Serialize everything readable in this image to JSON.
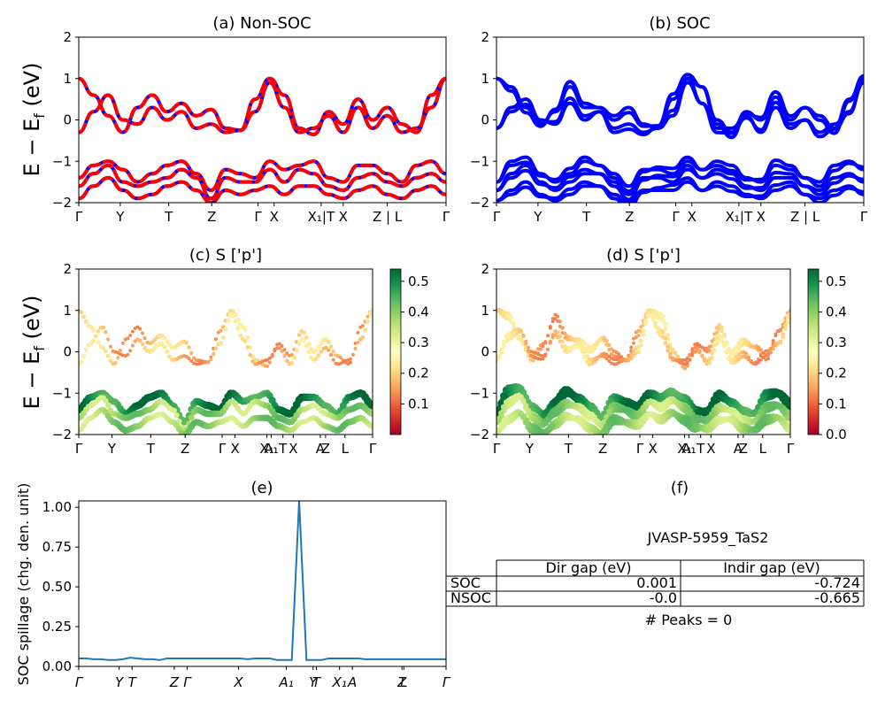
{
  "panels": {
    "a": {
      "title": "(a) Non-SOC"
    },
    "b": {
      "title": "(b) SOC"
    },
    "c": {
      "title": "(c)  S ['p']"
    },
    "d": {
      "title": "(d) S ['p']"
    },
    "e": {
      "title": "(e)"
    },
    "f": {
      "title": "(f)"
    }
  },
  "energy_axis": {
    "ylabel": "E − E",
    "ylabel_sub": "f",
    "ylabel_unit": " (eV)",
    "ylim": [
      -2,
      2
    ],
    "yticks": [
      "2",
      "1",
      "0",
      "−1",
      "−2"
    ]
  },
  "kpath_labels": [
    "Γ",
    "Y",
    "T",
    "Z",
    "Γ",
    "X",
    "X₁",
    "A₁",
    "T",
    "X",
    "A",
    "Z",
    "L",
    "Γ"
  ],
  "kpath_labels_top": [
    "Γ",
    "Y",
    "T",
    "Z",
    "Γ",
    "X",
    "X₁|T",
    "X",
    "Z | L",
    "Γ"
  ],
  "colorbar_c": {
    "ticks": [
      "0.5",
      "0.4",
      "0.3",
      "0.2",
      "0.1"
    ],
    "range": [
      0.0,
      0.54
    ]
  },
  "colorbar_d": {
    "ticks": [
      "0.5",
      "0.4",
      "0.3",
      "0.2",
      "0.1",
      "0.0"
    ],
    "range": [
      0.0,
      0.54
    ]
  },
  "colors": {
    "nonsoc_red": "#ff0000",
    "nonsoc_blue": "#0000ff",
    "soc_blue": "#0000ff",
    "spillage_line": "#1f77b4"
  },
  "spillage": {
    "ylabel": "SOC spillage (chg. den. unit)",
    "ylim": [
      0,
      1.04
    ],
    "yticks": [
      "1.00",
      "0.75",
      "0.50",
      "0.25",
      "0.00"
    ],
    "xticks": [
      "Γ",
      "Y",
      "T",
      "Z",
      "Γ",
      "X",
      "A₁",
      "Y",
      "T",
      "X₁",
      "A",
      "Z",
      "L",
      "Γ"
    ]
  },
  "table": {
    "heading": "JVASP-5959_TaS2",
    "col_headers": [
      "Dir gap (eV)",
      "Indir gap (eV)"
    ],
    "rows": [
      {
        "label": "SOC",
        "dir": "0.001",
        "indir": "-0.724"
      },
      {
        "label": "NSOC",
        "dir": "-0.0",
        "indir": "-0.665"
      }
    ],
    "peaks": "# Peaks = 0"
  },
  "chart_data": [
    {
      "type": "line",
      "title": "(a) Non-SOC",
      "ylabel": "E − E_f (eV)",
      "ylim": [
        -2,
        2
      ],
      "series": [
        {
          "values": [
            1.0,
            0.6,
            0.1,
            -0.3,
            0.3,
            0.6,
            0.2,
            0.4,
            0.1,
            0.25,
            -0.2,
            -0.25,
            0.5,
            1.0,
            0.6,
            -0.2,
            -0.35,
            0.2,
            -0.1,
            0.5,
            0.0,
            0.3,
            -0.1,
            -0.3,
            0.6,
            1.0
          ]
        },
        {
          "values": [
            -0.3,
            0.2,
            0.6,
            0.0,
            -0.1,
            0.3,
            0.0,
            0.2,
            -0.2,
            -0.1,
            -0.3,
            -0.25,
            0.2,
            0.9,
            0.3,
            -0.3,
            -0.2,
            0.1,
            -0.3,
            0.3,
            -0.2,
            0.1,
            -0.3,
            -0.2,
            0.3,
            1.0
          ]
        },
        {
          "values": [
            -1.4,
            -1.1,
            -1.0,
            -1.2,
            -1.5,
            -1.3,
            -1.1,
            -1.0,
            -1.3,
            -1.7,
            -1.2,
            -1.3,
            -1.4,
            -1.0,
            -1.2,
            -1.1,
            -1.0,
            -1.4,
            -1.5,
            -1.1,
            -1.1,
            -1.3,
            -1.5,
            -1.1,
            -1.0,
            -1.3
          ]
        },
        {
          "values": [
            -1.6,
            -1.3,
            -1.1,
            -1.5,
            -1.6,
            -1.5,
            -1.4,
            -1.2,
            -1.4,
            -1.9,
            -1.4,
            -1.5,
            -1.5,
            -1.2,
            -1.5,
            -1.2,
            -1.3,
            -1.6,
            -1.7,
            -1.4,
            -1.3,
            -1.5,
            -1.6,
            -1.4,
            -1.3,
            -1.5
          ]
        },
        {
          "values": [
            -1.9,
            -1.6,
            -1.4,
            -1.7,
            -1.9,
            -1.8,
            -1.6,
            -1.5,
            -1.7,
            -2.0,
            -1.7,
            -1.8,
            -1.7,
            -1.6,
            -1.8,
            -1.6,
            -1.6,
            -1.8,
            -1.9,
            -1.7,
            -1.6,
            -1.8,
            -1.9,
            -1.7,
            -1.6,
            -1.8
          ]
        }
      ]
    },
    {
      "type": "line",
      "title": "(b) SOC",
      "ylim": [
        -2,
        2
      ],
      "series": [
        {
          "values": [
            1.0,
            0.8,
            0.3,
            -0.1,
            0.2,
            0.8,
            0.3,
            0.3,
            0.1,
            0.3,
            -0.1,
            -0.2,
            0.5,
            1.0,
            0.8,
            0.0,
            -0.3,
            0.2,
            0.0,
            0.55,
            0.0,
            0.3,
            0.1,
            -0.2,
            0.5,
            1.0
          ]
        },
        {
          "values": [
            -0.2,
            0.3,
            0.5,
            0.0,
            -0.1,
            0.4,
            0.0,
            0.2,
            -0.2,
            -0.1,
            -0.3,
            -0.2,
            0.1,
            0.9,
            0.4,
            -0.2,
            -0.2,
            0.1,
            -0.3,
            0.3,
            -0.2,
            0.0,
            -0.3,
            -0.1,
            0.2,
            0.9
          ]
        },
        {
          "values": [
            -1.5,
            -1.0,
            -0.9,
            -1.3,
            -1.5,
            -1.3,
            -1.0,
            -1.1,
            -1.3,
            -1.6,
            -1.2,
            -1.2,
            -1.3,
            -1.0,
            -1.2,
            -1.0,
            -1.1,
            -1.4,
            -1.5,
            -1.1,
            -1.2,
            -1.4,
            -1.5,
            -1.1,
            -1.0,
            -1.2
          ]
        },
        {
          "values": [
            -1.7,
            -1.3,
            -1.1,
            -1.5,
            -1.7,
            -1.5,
            -1.3,
            -1.3,
            -1.5,
            -1.8,
            -1.4,
            -1.4,
            -1.5,
            -1.2,
            -1.4,
            -1.2,
            -1.3,
            -1.6,
            -1.7,
            -1.4,
            -1.4,
            -1.6,
            -1.7,
            -1.4,
            -1.3,
            -1.5
          ]
        },
        {
          "values": [
            -1.95,
            -1.7,
            -1.5,
            -1.8,
            -1.95,
            -1.8,
            -1.6,
            -1.6,
            -1.8,
            -2.0,
            -1.7,
            -1.7,
            -1.7,
            -1.5,
            -1.7,
            -1.5,
            -1.6,
            -1.8,
            -1.9,
            -1.7,
            -1.6,
            -1.8,
            -1.9,
            -1.7,
            -1.6,
            -1.8
          ]
        }
      ]
    },
    {
      "type": "scatter",
      "title": "(c)  S ['p']",
      "ylim": [
        -2,
        2
      ],
      "colorbar_range": [
        0.0,
        0.54
      ]
    },
    {
      "type": "scatter",
      "title": "(d) S ['p']",
      "ylim": [
        -2,
        2
      ],
      "colorbar_range": [
        0.0,
        0.54
      ]
    },
    {
      "type": "line",
      "title": "(e)",
      "ylabel": "SOC spillage (chg. den. unit)",
      "ylim": [
        0,
        1.04
      ],
      "series": [
        {
          "values": [
            0.05,
            0.05,
            0.045,
            0.045,
            0.04,
            0.04,
            0.045,
            0.055,
            0.05,
            0.045,
            0.045,
            0.04,
            0.05,
            0.05,
            0.05,
            0.05,
            0.05,
            0.05,
            0.05,
            0.05,
            0.05,
            0.05,
            0.05,
            0.045,
            0.05,
            0.05,
            0.05,
            0.04,
            0.04,
            0.04,
            1.04,
            0.04,
            0.04,
            0.04,
            0.05,
            0.05,
            0.05,
            0.05,
            0.05,
            0.045,
            0.045,
            0.045,
            0.045,
            0.045,
            0.045,
            0.045,
            0.045,
            0.045,
            0.045,
            0.045,
            0.045
          ]
        }
      ]
    }
  ]
}
